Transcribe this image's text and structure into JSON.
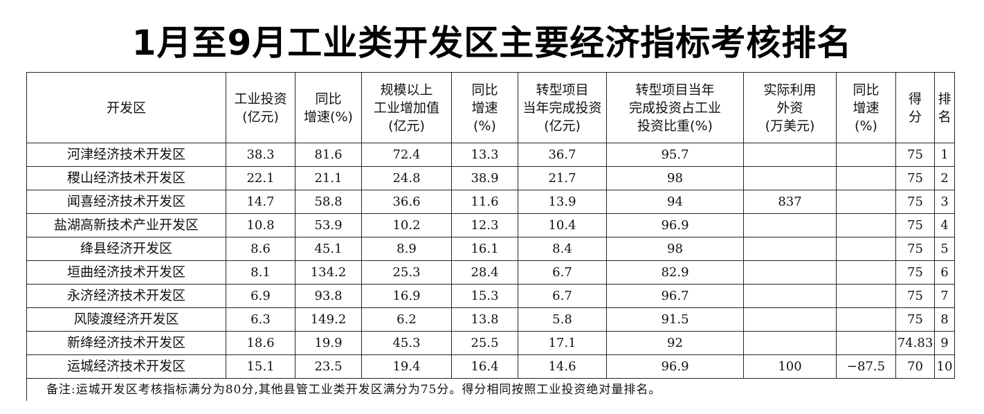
{
  "title": "1月至9月工业类开发区主要经济指标考核排名",
  "headers": [
    [
      "开发区"
    ],
    [
      "工业投资",
      "(亿元)"
    ],
    [
      "同比",
      "增速(%)"
    ],
    [
      "规模以上",
      "工业增加值",
      "(亿元)"
    ],
    [
      "同比",
      "增速",
      "(%)"
    ],
    [
      "转型项目",
      "当年完成投资",
      "(亿元)"
    ],
    [
      "转型项目当年",
      "完成投资占工业",
      "投资比重(%)"
    ],
    [
      "实际利用",
      "外资",
      "(万美元)"
    ],
    [
      "同比",
      "增速",
      "(%)"
    ],
    [
      "得",
      "分"
    ],
    [
      "排",
      "名"
    ]
  ],
  "rows": [
    [
      "河津经济技术开发区",
      "38.3",
      "81.6",
      "72.4",
      "13.3",
      "36.7",
      "95.7",
      "",
      "",
      "75",
      "1"
    ],
    [
      "稷山经济技术开发区",
      "22.1",
      "21.1",
      "24.8",
      "38.9",
      "21.7",
      "98",
      "",
      "",
      "75",
      "2"
    ],
    [
      "闻喜经济技术开发区",
      "14.7",
      "58.8",
      "36.6",
      "11.6",
      "13.9",
      "94",
      "837",
      "",
      "75",
      "3"
    ],
    [
      "盐湖高新技术产业开发区",
      "10.8",
      "53.9",
      "10.2",
      "12.3",
      "10.4",
      "96.9",
      "",
      "",
      "75",
      "4"
    ],
    [
      "绛县经济开发区",
      "8.6",
      "45.1",
      "8.9",
      "16.1",
      "8.4",
      "98",
      "",
      "",
      "75",
      "5"
    ],
    [
      "垣曲经济技术开发区",
      "8.1",
      "134.2",
      "25.3",
      "28.4",
      "6.7",
      "82.9",
      "",
      "",
      "75",
      "6"
    ],
    [
      "永济经济技术开发区",
      "6.9",
      "93.8",
      "16.9",
      "15.3",
      "6.7",
      "96.7",
      "",
      "",
      "75",
      "7"
    ],
    [
      "风陵渡经济开发区",
      "6.3",
      "149.2",
      "6.2",
      "13.8",
      "5.8",
      "91.5",
      "",
      "",
      "75",
      "8"
    ],
    [
      "新绛经济技术开发区",
      "18.6",
      "19.9",
      "45.3",
      "25.5",
      "17.1",
      "92",
      "",
      "",
      "74.83",
      "9"
    ],
    [
      "运城经济技术开发区",
      "15.1",
      "23.5",
      "19.4",
      "16.4",
      "14.6",
      "96.9",
      "100",
      "−87.5",
      "70",
      "10"
    ]
  ],
  "note": "备注:运城开发区考核指标满分为80分,其他县管工业类开发区满分为75分。得分相同按照工业投资绝对量排名。"
}
